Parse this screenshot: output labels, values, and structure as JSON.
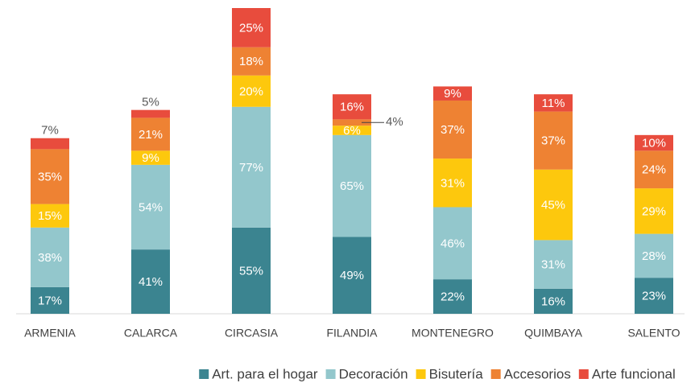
{
  "chart_data": {
    "type": "stacked_bar",
    "categories": [
      "ARMENIA",
      "CALARCA",
      "CIRCASIA",
      "FILANDIA",
      "MONTENEGRO",
      "QUIMBAYA",
      "SALENTO"
    ],
    "series": [
      {
        "name": "Art. para el hogar",
        "color": "#3b8490",
        "values": [
          17,
          41,
          55,
          49,
          22,
          16,
          23
        ],
        "value_labels": [
          "17%",
          "41%",
          "55%",
          "49%",
          "22%",
          "16%",
          "23%"
        ]
      },
      {
        "name": "Decoración",
        "color": "#93c7cc",
        "values": [
          38,
          54,
          77,
          65,
          46,
          31,
          28
        ],
        "value_labels": [
          "38%",
          "54%",
          "77%",
          "65%",
          "46%",
          "31%",
          "28%"
        ]
      },
      {
        "name": "Bisutería",
        "color": "#fdc80d",
        "values": [
          15,
          9,
          20,
          6,
          31,
          45,
          29
        ],
        "value_labels": [
          "15%",
          "9%",
          "20%",
          "6%",
          "31%",
          "45%",
          "29%"
        ]
      },
      {
        "name": "Accesorios",
        "color": "#ee8233",
        "values": [
          35,
          21,
          18,
          4,
          37,
          37,
          24
        ],
        "value_labels": [
          "35%",
          "21%",
          "18%",
          "4%",
          "37%",
          "37%",
          "24%"
        ]
      },
      {
        "name": "Arte funcional",
        "color": "#e84c3d",
        "values": [
          7,
          5,
          25,
          16,
          9,
          11,
          10
        ],
        "value_labels": [
          "7%",
          "5%",
          "25%",
          "16%",
          "9%",
          "11%",
          "10%"
        ]
      }
    ]
  }
}
